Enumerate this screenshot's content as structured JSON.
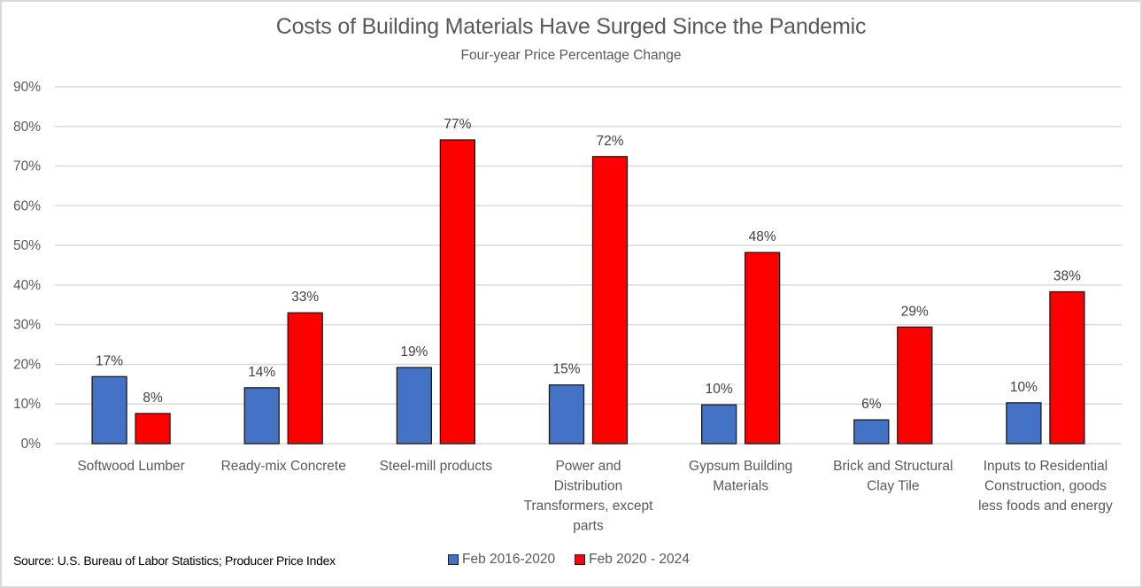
{
  "chart_data": {
    "type": "bar",
    "title": "Costs of Building Materials Have Surged Since the Pandemic",
    "subtitle": "Four-year Price Percentage Change",
    "xlabel": "",
    "ylabel": "",
    "ylim": [
      0,
      90
    ],
    "y_ticks": [
      "0%",
      "10%",
      "20%",
      "30%",
      "40%",
      "50%",
      "60%",
      "70%",
      "80%",
      "90%"
    ],
    "y_tick_values": [
      0,
      10,
      20,
      30,
      40,
      50,
      60,
      70,
      80,
      90
    ],
    "grid": true,
    "legend_position": "bottom",
    "categories": [
      [
        "Softwood Lumber"
      ],
      [
        "Ready-mix Concrete"
      ],
      [
        "Steel-mill products"
      ],
      [
        "Power and",
        "Distribution",
        "Transformers, except",
        "parts"
      ],
      [
        "Gypsum Building",
        "Materials"
      ],
      [
        "Brick and Structural",
        "Clay Tile"
      ],
      [
        "Inputs to Residential",
        "Construction, goods",
        "less foods and energy"
      ]
    ],
    "series": [
      {
        "name": "Feb 2016-2020",
        "color": "#4472c4",
        "values": [
          16.9,
          14.1,
          19.2,
          14.8,
          9.8,
          6.0,
          10.3
        ],
        "labels": [
          "17%",
          "14%",
          "19%",
          "15%",
          "10%",
          "6%",
          "10%"
        ]
      },
      {
        "name": "Feb 2020 - 2024",
        "color": "#ff0000",
        "values": [
          7.6,
          33.0,
          76.6,
          72.4,
          48.2,
          29.4,
          38.3
        ],
        "labels": [
          "8%",
          "33%",
          "77%",
          "72%",
          "48%",
          "29%",
          "38%"
        ]
      }
    ],
    "source": "Source: U.S. Bureau of Labor Statistics; Producer Price Index"
  }
}
